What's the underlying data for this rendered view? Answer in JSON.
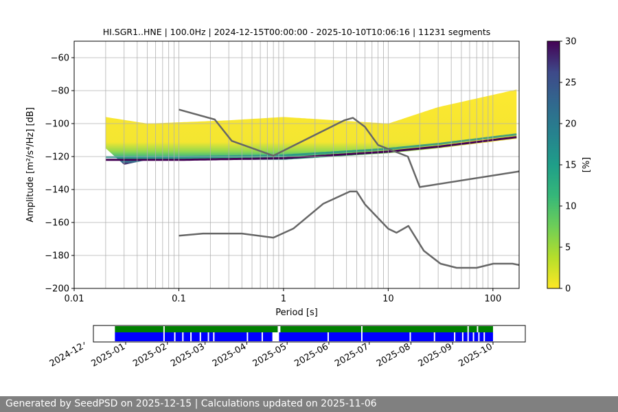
{
  "chart_data": [
    {
      "type": "heatmap",
      "title": "HI.SGR1..HNE | 100.0Hz | 2024-12-15T00:00:00 - 2025-10-10T10:06:16 | 11231 segments",
      "xlabel": "Period [s]",
      "ylabel": "Amplitude [m²/s⁴/Hz] [dB]",
      "x_scale": "log",
      "xlim": [
        0.01,
        178
      ],
      "ylim": [
        -200,
        -50
      ],
      "x_ticks": [
        {
          "value": 0.01,
          "label": "0.01"
        },
        {
          "value": 0.1,
          "label": "0.1"
        },
        {
          "value": 1,
          "label": "1"
        },
        {
          "value": 10,
          "label": "10"
        },
        {
          "value": 100,
          "label": "100"
        }
      ],
      "y_ticks": [
        -200,
        -180,
        -160,
        -140,
        -120,
        -100,
        -80,
        -60
      ],
      "grid": true,
      "colormap": "viridis_r",
      "colorbar": {
        "label": "[%]",
        "range": [
          0,
          30
        ],
        "ticks": [
          0,
          5,
          10,
          15,
          20,
          25,
          30
        ]
      },
      "series": [
        {
          "name": "",
          "role": "noise model upper",
          "color": "#666666",
          "points": [
            [
              0.1,
              -91.5
            ],
            [
              0.22,
              -97.5
            ],
            [
              0.32,
              -110.5
            ],
            [
              0.8,
              -119.5
            ],
            [
              3.8,
              -98.0
            ],
            [
              4.6,
              -96.5
            ],
            [
              6.0,
              -102.0
            ],
            [
              8.0,
              -113.0
            ],
            [
              15.4,
              -120.0
            ],
            [
              20.0,
              -138.5
            ],
            [
              178,
              -129.0
            ]
          ]
        },
        {
          "name": "",
          "role": "noise model lower",
          "color": "#666666",
          "points": [
            [
              0.1,
              -168.0
            ],
            [
              0.17,
              -166.7
            ],
            [
              0.4,
              -166.7
            ],
            [
              0.8,
              -169.2
            ],
            [
              1.24,
              -163.7
            ],
            [
              2.4,
              -148.6
            ],
            [
              4.3,
              -141.2
            ],
            [
              5.0,
              -141.2
            ],
            [
              6.0,
              -149.0
            ],
            [
              10.0,
              -163.8
            ],
            [
              12.0,
              -166.2
            ],
            [
              15.6,
              -162.1
            ],
            [
              21.9,
              -177.2
            ],
            [
              31.6,
              -185.0
            ],
            [
              45.0,
              -187.5
            ],
            [
              70.0,
              -187.5
            ],
            [
              101,
              -185.0
            ],
            [
              154,
              -185.0
            ],
            [
              178,
              -185.8
            ]
          ]
        }
      ],
      "density_band": {
        "description_note": "",
        "bottom_db": [
          [
            0.02,
            -115
          ],
          [
            0.03,
            -125
          ],
          [
            0.05,
            -122
          ],
          [
            1.0,
            -122
          ],
          [
            10,
            -118
          ],
          [
            30,
            -115
          ],
          [
            178,
            -109
          ]
        ],
        "top_db": [
          [
            0.02,
            -96
          ],
          [
            0.05,
            -100
          ],
          [
            0.3,
            -98
          ],
          [
            1.0,
            -96
          ],
          [
            10,
            -100
          ],
          [
            30,
            -90
          ],
          [
            178,
            -79
          ]
        ],
        "peak_db": [
          [
            0.05,
            -122
          ],
          [
            0.1,
            -122
          ],
          [
            1.0,
            -121
          ],
          [
            10,
            -117
          ],
          [
            30,
            -114
          ],
          [
            178,
            -108
          ]
        ]
      }
    },
    {
      "type": "timeline",
      "title": "",
      "x_ticks": [
        "2024-12",
        "2025-01",
        "2025-02",
        "2025-03",
        "2025-04",
        "2025-05",
        "2025-06",
        "2025-07",
        "2025-08",
        "2025-09",
        "2025-10"
      ],
      "xlim": [
        "2024-12-08",
        "2025-10-25"
      ],
      "rows": [
        {
          "role": "top",
          "color": "#008000",
          "start": "2024-12-24",
          "end": "2025-10-01",
          "gaps": [
            [
              "2025-01-29",
              "2025-01-30"
            ],
            [
              "2025-04-24",
              "2025-04-26"
            ],
            [
              "2025-06-25",
              "2025-06-26"
            ],
            [
              "2025-09-12",
              "2025-09-13"
            ],
            [
              "2025-09-19",
              "2025-09-20"
            ]
          ]
        },
        {
          "role": "bottom",
          "color": "#0000ff",
          "start": "2024-12-24",
          "end": "2025-10-01",
          "gaps": [
            [
              "2025-01-29",
              "2025-01-30"
            ],
            [
              "2025-02-06",
              "2025-02-07"
            ],
            [
              "2025-02-12",
              "2025-02-13"
            ],
            [
              "2025-02-18",
              "2025-02-19"
            ],
            [
              "2025-02-25",
              "2025-02-26"
            ],
            [
              "2025-03-03",
              "2025-03-04"
            ],
            [
              "2025-03-07",
              "2025-03-08"
            ],
            [
              "2025-04-01",
              "2025-04-02"
            ],
            [
              "2025-04-12",
              "2025-04-13"
            ],
            [
              "2025-04-20",
              "2025-04-25"
            ],
            [
              "2025-05-31",
              "2025-06-01"
            ],
            [
              "2025-06-25",
              "2025-06-26"
            ],
            [
              "2025-07-31",
              "2025-08-01"
            ],
            [
              "2025-08-18",
              "2025-08-19"
            ],
            [
              "2025-09-02",
              "2025-09-03"
            ],
            [
              "2025-09-08",
              "2025-09-09"
            ],
            [
              "2025-09-12",
              "2025-09-13"
            ],
            [
              "2025-09-16",
              "2025-09-17"
            ],
            [
              "2025-09-20",
              "2025-09-21"
            ],
            [
              "2025-09-24",
              "2025-09-25"
            ]
          ]
        }
      ]
    }
  ],
  "footer": {
    "text": "Generated by SeedPSD on 2025-12-15 | Calculations updated on 2025-11-06"
  }
}
